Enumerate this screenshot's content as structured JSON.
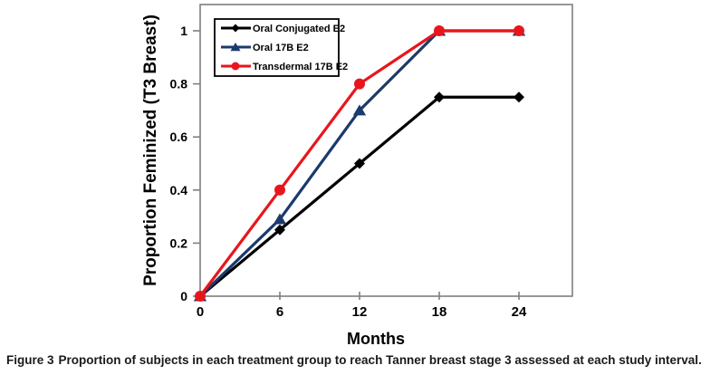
{
  "figure": {
    "caption_label": "Figure 3",
    "caption_text": "Proportion of subjects in each treatment group to reach Tanner breast stage 3 assessed at each study interval."
  },
  "chart_data": {
    "type": "line",
    "title": "",
    "xlabel": "Months",
    "ylabel": "Proportion Feminized (T3 Breast)",
    "x": [
      0,
      6,
      12,
      18,
      24
    ],
    "xticks": [
      0,
      6,
      12,
      18,
      24
    ],
    "yticks": [
      0,
      0.2,
      0.4,
      0.6,
      0.8,
      1
    ],
    "xlim": [
      0,
      28
    ],
    "ylim": [
      0,
      1.1
    ],
    "grid": false,
    "legend_position": "top-left-inside",
    "axis_color": "#7f7f7f",
    "series": [
      {
        "name": "Oral Conjugated E2",
        "color": "#000000",
        "marker": "diamond",
        "values": [
          0,
          0.25,
          0.5,
          0.75,
          0.75
        ]
      },
      {
        "name": "Oral 17B E2",
        "color": "#1b3a6d",
        "marker": "triangle",
        "values": [
          0,
          0.29,
          0.7,
          1.0,
          1.0
        ]
      },
      {
        "name": "Transdermal 17B E2",
        "color": "#e8161c",
        "marker": "circle",
        "values": [
          0,
          0.4,
          0.8,
          1.0,
          1.0
        ]
      }
    ]
  }
}
